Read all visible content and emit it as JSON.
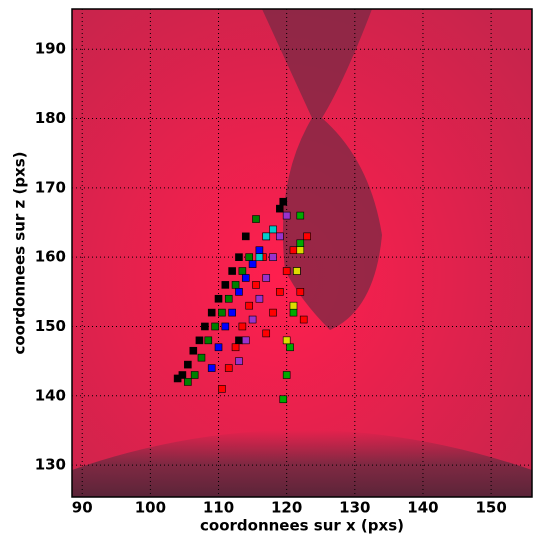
{
  "chart_data": {
    "type": "scatter",
    "x_label": "coordonnees sur x (pxs)",
    "y_label": "coordonnees sur z (pxs)",
    "xlim": [
      88.5,
      156
    ],
    "ylim": [
      125.4,
      195.8
    ],
    "xticks": [
      90,
      100,
      110,
      120,
      130,
      140,
      150
    ],
    "yticks": [
      130,
      140,
      150,
      160,
      170,
      180,
      190
    ],
    "grid": true,
    "series": [
      {
        "color": "#000000",
        "x": [
          104,
          104.7,
          105.5,
          106.3,
          107.2,
          108,
          109,
          110,
          111,
          112,
          113,
          114,
          113,
          119,
          119.5
        ],
        "values": [
          142.5,
          143,
          144.5,
          146.5,
          148,
          150,
          152,
          154,
          156,
          158,
          160,
          163,
          148,
          167,
          168
        ]
      },
      {
        "color": "#008000",
        "x": [
          105.5,
          106.5,
          107.5,
          108.5,
          109.5,
          110.5,
          111.5,
          112.5,
          113.5,
          114.5,
          115.5
        ],
        "values": [
          142,
          143,
          145.5,
          148,
          150,
          152,
          154,
          156,
          158,
          160,
          165.5
        ]
      },
      {
        "color": "#0000ff",
        "x": [
          109,
          110,
          111,
          112,
          113,
          114,
          115,
          116,
          117
        ],
        "values": [
          144,
          147,
          150,
          152,
          155,
          157,
          159,
          161,
          163
        ]
      },
      {
        "color": "#9932cc",
        "x": [
          113,
          114,
          115,
          116,
          117,
          118,
          119,
          120
        ],
        "values": [
          145,
          148,
          151,
          154,
          157,
          160,
          163,
          166
        ]
      },
      {
        "color": "#ff0000",
        "x": [
          110.5,
          111.5,
          112.5,
          113.5,
          114.5,
          115.5,
          116.5,
          117,
          118,
          119,
          120,
          121,
          122,
          123,
          122.5
        ],
        "values": [
          141,
          144,
          147,
          150,
          153,
          156,
          160,
          149,
          152,
          155,
          158,
          161,
          155,
          163,
          151
        ]
      },
      {
        "color": "#00aa00",
        "x": [
          119.5,
          120,
          120.5,
          121,
          121.5,
          122,
          122
        ],
        "values": [
          139.5,
          143,
          147,
          152,
          158,
          162,
          166
        ]
      },
      {
        "color": "#dddd00",
        "x": [
          120,
          121,
          121.5,
          122
        ],
        "values": [
          148,
          153,
          158,
          161
        ]
      },
      {
        "color": "#00cccc",
        "x": [
          116,
          117,
          118
        ],
        "values": [
          160,
          163,
          164
        ]
      }
    ]
  }
}
